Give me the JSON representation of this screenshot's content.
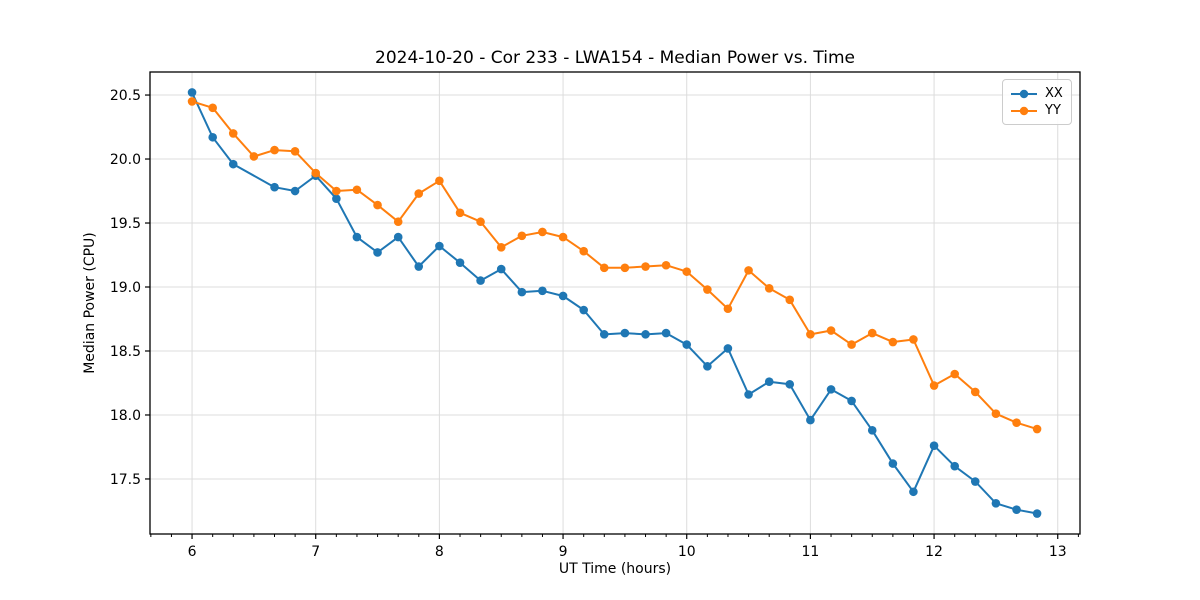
{
  "chart_data": {
    "type": "line",
    "title": "2024-10-20 - Cor 233 - LWA154 - Median Power vs. Time",
    "xlabel": "UT Time (hours)",
    "ylabel": "Median Power (CPU)",
    "xlim": [
      5.66,
      13.18
    ],
    "ylim": [
      17.07,
      20.68
    ],
    "xticks": [
      6,
      7,
      8,
      9,
      10,
      11,
      12,
      13
    ],
    "yticks": [
      17.5,
      18.0,
      18.5,
      19.0,
      19.5,
      20.0,
      20.5
    ],
    "x_minor_step": 0.16667,
    "grid": true,
    "grid_color": "#dcdcdc",
    "legend_position": "upper right",
    "series": [
      {
        "name": "XX",
        "color": "#1f77b4",
        "marker": "circle",
        "x": [
          6.0,
          6.167,
          6.333,
          6.667,
          6.833,
          7.0,
          7.167,
          7.333,
          7.5,
          7.667,
          7.833,
          8.0,
          8.167,
          8.333,
          8.5,
          8.667,
          8.833,
          9.0,
          9.167,
          9.333,
          9.5,
          9.667,
          9.833,
          10.0,
          10.167,
          10.333,
          10.5,
          10.667,
          10.833,
          11.0,
          11.167,
          11.333,
          11.5,
          11.667,
          11.833,
          12.0,
          12.167,
          12.333,
          12.5,
          12.667,
          12.833
        ],
        "y": [
          20.52,
          20.17,
          19.96,
          19.78,
          19.75,
          19.87,
          19.69,
          19.39,
          19.27,
          19.39,
          19.16,
          19.32,
          19.19,
          19.05,
          19.14,
          18.96,
          18.97,
          18.93,
          18.82,
          18.63,
          18.64,
          18.63,
          18.64,
          18.55,
          18.38,
          18.52,
          18.16,
          18.26,
          18.24,
          17.96,
          18.2,
          18.11,
          17.88,
          17.62,
          17.4,
          17.76,
          17.6,
          17.48,
          17.31,
          17.26,
          17.23
        ]
      },
      {
        "name": "YY",
        "color": "#ff7f0e",
        "marker": "circle",
        "x": [
          6.0,
          6.167,
          6.333,
          6.5,
          6.667,
          6.833,
          7.0,
          7.167,
          7.333,
          7.5,
          7.667,
          7.833,
          8.0,
          8.167,
          8.333,
          8.5,
          8.667,
          8.833,
          9.0,
          9.167,
          9.333,
          9.5,
          9.667,
          9.833,
          10.0,
          10.167,
          10.333,
          10.5,
          10.667,
          10.833,
          11.0,
          11.167,
          11.333,
          11.5,
          11.667,
          11.833,
          12.0,
          12.167,
          12.333,
          12.5,
          12.667,
          12.833
        ],
        "y": [
          20.45,
          20.4,
          20.2,
          20.02,
          20.07,
          20.06,
          19.89,
          19.75,
          19.76,
          19.64,
          19.51,
          19.73,
          19.83,
          19.58,
          19.51,
          19.31,
          19.4,
          19.43,
          19.39,
          19.28,
          19.15,
          19.15,
          19.16,
          19.17,
          19.12,
          18.98,
          18.83,
          19.13,
          18.99,
          18.9,
          18.63,
          18.66,
          18.55,
          18.64,
          18.57,
          18.59,
          18.23,
          18.32,
          18.18,
          18.01,
          17.94,
          17.89
        ]
      }
    ]
  }
}
